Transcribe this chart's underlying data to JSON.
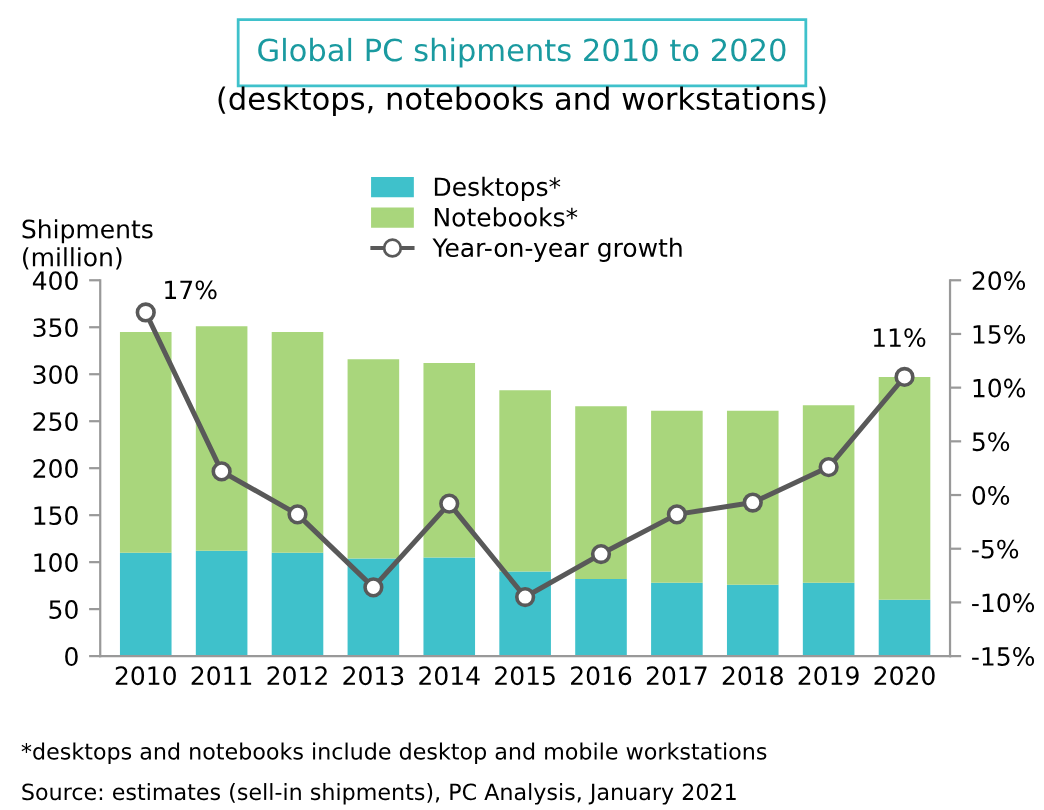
{
  "chart_data": {
    "type": "bar",
    "title": "Global PC shipments 2010 to 2020",
    "subtitle": "(desktops, notebooks and workstations)",
    "ylabel": "Shipments\n(million)",
    "categories": [
      "2010",
      "2011",
      "2012",
      "2013",
      "2014",
      "2015",
      "2016",
      "2017",
      "2018",
      "2019",
      "2020"
    ],
    "stacked": true,
    "series": [
      {
        "name": "Desktops*",
        "color": "#3fc1cb",
        "values": [
          110,
          112,
          110,
          104,
          105,
          90,
          82,
          78,
          76,
          78,
          60
        ]
      },
      {
        "name": "Notebooks*",
        "color": "#a9d67c",
        "values": [
          235,
          239,
          235,
          212,
          207,
          193,
          184,
          183,
          185,
          189,
          237
        ]
      },
      {
        "name": "Year-on-year growth",
        "type": "line",
        "axis": "y2",
        "color": "#595959",
        "marker": "circle",
        "values": [
          17,
          2.2,
          -1.8,
          -8.6,
          -0.8,
          -9.5,
          -5.5,
          -1.8,
          -0.7,
          2.6,
          11
        ],
        "value_labels": [
          "17%",
          null,
          null,
          null,
          null,
          null,
          null,
          null,
          null,
          null,
          "11%"
        ]
      }
    ],
    "ylim": [
      0,
      400
    ],
    "yticks": [
      0,
      50,
      100,
      150,
      200,
      250,
      300,
      350,
      400
    ],
    "y2lim": [
      -15,
      20
    ],
    "y2ticks": [
      {
        "value": -15,
        "label": "-15%"
      },
      {
        "value": -10,
        "label": "-10%"
      },
      {
        "value": -5,
        "label": "-5%"
      },
      {
        "value": 0,
        "label": "0%"
      },
      {
        "value": 5,
        "label": "5%"
      },
      {
        "value": 10,
        "label": "10%"
      },
      {
        "value": 15,
        "label": "15%"
      },
      {
        "value": 20,
        "label": "20%"
      }
    ],
    "grid": false,
    "legend": "top",
    "annotations": [
      "*desktops and notebooks include desktop and mobile workstations",
      "Source: estimates (sell-in shipments), PC Analysis, January 2021"
    ]
  }
}
